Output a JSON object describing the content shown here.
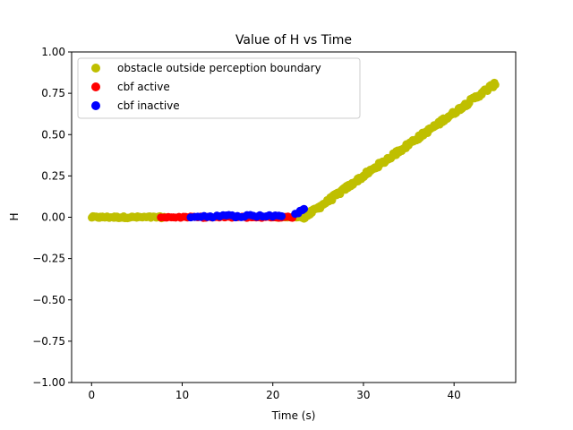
{
  "chart_data": {
    "type": "scatter",
    "title": "Value of H vs Time",
    "xlabel": "Time (s)",
    "ylabel": "H",
    "xlim": [
      -2.2,
      46.8
    ],
    "ylim": [
      -1.0,
      1.0
    ],
    "xticks": [
      0,
      10,
      20,
      30,
      40
    ],
    "yticks": [
      -1.0,
      -0.75,
      -0.5,
      -0.25,
      0.0,
      0.25,
      0.5,
      0.75,
      1.0
    ],
    "ytick_labels": [
      "−1.00",
      "−0.75",
      "−0.50",
      "−0.25",
      "0.00",
      "0.25",
      "0.50",
      "0.75",
      "1.00"
    ],
    "grid": false,
    "legend_position": "upper-left",
    "series": [
      {
        "name": "obstacle outside perception boundary",
        "color": "#bfbf00",
        "segments": [
          {
            "x_start": 0.0,
            "x_end": 8.0,
            "y_start": 0.0,
            "y_end": 0.0,
            "count": 64,
            "jitter": 0.006
          },
          {
            "x_start": 20.0,
            "x_end": 23.5,
            "y_start": 0.0,
            "y_end": 0.0,
            "count": 16,
            "jitter": 0.004
          },
          {
            "x_start": 23.5,
            "x_end": 44.6,
            "y_start": 0.0,
            "y_end": 0.81,
            "count": 200,
            "jitter": 0.012
          }
        ]
      },
      {
        "name": "cbf active",
        "color": "#ff0000",
        "segments": [
          {
            "x_start": 7.7,
            "x_end": 22.2,
            "y_start": 0.0,
            "y_end": 0.0,
            "count": 55,
            "jitter": 0.004
          }
        ]
      },
      {
        "name": "cbf inactive",
        "color": "#0000ff",
        "segments": [
          {
            "x_start": 11.0,
            "x_end": 21.0,
            "y_start": 0.005,
            "y_end": 0.01,
            "count": 30,
            "jitter": 0.008
          },
          {
            "x_start": 22.5,
            "x_end": 23.5,
            "y_start": 0.02,
            "y_end": 0.05,
            "count": 5,
            "jitter": 0.005
          }
        ]
      }
    ]
  }
}
